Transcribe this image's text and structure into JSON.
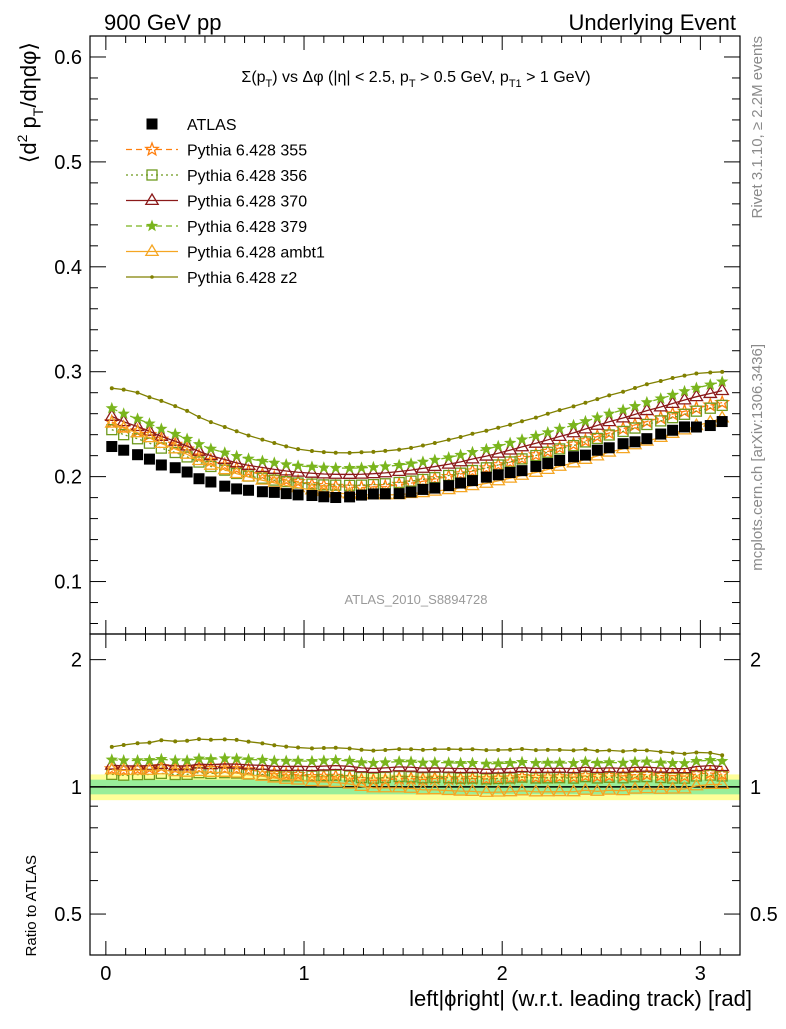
{
  "header": {
    "left": "900 GeV pp",
    "right": "Underlying Event"
  },
  "side": {
    "rivet": "Rivet 3.1.10, ≥ 2.2M events",
    "mcplots": "mcplots.cern.ch [arXiv:1306.3436]"
  },
  "analysis_tag": "ATLAS_2010_S8894728",
  "chart_data": [
    {
      "type": "line",
      "panel": "main",
      "title": "Σ(p_T) vs Δφ (|η| < 2.5, p_T > 0.5 GeV, p_T1 > 1 GeV)",
      "title_parts": {
        "a": "Σ(p",
        "a_sub": "T",
        "b": ") vs Δφ (|η| < 2.5, p",
        "b_sub": "T",
        "c": " > 0.5 GeV, p",
        "c_sub": "T1",
        "d": " > 1 GeV)"
      },
      "ylabel_parts": {
        "a": "⟨d",
        "sup": "2",
        "b": " p",
        "sub": "T",
        "c": "/dηdφ⟩"
      },
      "xlabel": "left|ϕright| (w.r.t. leading track) [rad]",
      "xlim": [
        -0.08,
        3.2
      ],
      "ylim": [
        0.05,
        0.62
      ],
      "x_ticks": [
        0,
        1,
        2,
        3
      ],
      "y_ticks": [
        0.1,
        0.2,
        0.3,
        0.4,
        0.5,
        0.6
      ],
      "y_tick_labels": [
        "0.1",
        "0.2",
        "0.3",
        "0.4",
        "0.5",
        "0.6"
      ],
      "legend_position": "top-left",
      "grid": false,
      "x": [
        0.03,
        0.09,
        0.16,
        0.22,
        0.28,
        0.35,
        0.41,
        0.47,
        0.53,
        0.6,
        0.66,
        0.72,
        0.79,
        0.85,
        0.91,
        0.97,
        1.04,
        1.1,
        1.16,
        1.23,
        1.29,
        1.35,
        1.41,
        1.48,
        1.54,
        1.6,
        1.66,
        1.73,
        1.79,
        1.85,
        1.92,
        1.98,
        2.04,
        2.1,
        2.17,
        2.23,
        2.29,
        2.36,
        2.42,
        2.48,
        2.54,
        2.61,
        2.67,
        2.73,
        2.8,
        2.86,
        2.92,
        2.98,
        3.05,
        3.11
      ],
      "series": [
        {
          "name": "ATLAS",
          "color": "#000000",
          "marker": "filled-square",
          "line": "none",
          "values": [
            0.2287,
            0.2252,
            0.2209,
            0.2167,
            0.2111,
            0.2085,
            0.2044,
            0.198,
            0.1949,
            0.1909,
            0.1883,
            0.187,
            0.1856,
            0.185,
            0.1838,
            0.1826,
            0.182,
            0.1808,
            0.1801,
            0.1807,
            0.1824,
            0.1835,
            0.1836,
            0.1838,
            0.1853,
            0.1878,
            0.1891,
            0.1914,
            0.1939,
            0.1962,
            0.1995,
            0.2017,
            0.2039,
            0.2057,
            0.2097,
            0.2125,
            0.2154,
            0.2189,
            0.2205,
            0.2252,
            0.2275,
            0.2314,
            0.2332,
            0.2362,
            0.2406,
            0.2442,
            0.2474,
            0.2473,
            0.2487,
            0.2525
          ]
        },
        {
          "name": "Pythia 6.428 355",
          "color": "#ff7f0e",
          "marker": "open-star",
          "line": "dashed",
          "values": [
            0.2521,
            0.2469,
            0.2435,
            0.2401,
            0.2355,
            0.2307,
            0.2262,
            0.2196,
            0.2153,
            0.2111,
            0.2078,
            0.205,
            0.2018,
            0.1989,
            0.1968,
            0.1951,
            0.1923,
            0.1913,
            0.1906,
            0.1899,
            0.1895,
            0.1903,
            0.1904,
            0.1925,
            0.1938,
            0.1956,
            0.1979,
            0.1999,
            0.2025,
            0.2053,
            0.2083,
            0.2112,
            0.2138,
            0.2173,
            0.2207,
            0.224,
            0.2274,
            0.2308,
            0.2341,
            0.2383,
            0.2416,
            0.2456,
            0.2493,
            0.2526,
            0.2559,
            0.2597,
            0.2623,
            0.2652,
            0.2682,
            0.2705
          ]
        },
        {
          "name": "Pythia 6.428 356",
          "color": "#6e9a1e",
          "marker": "open-square",
          "line": "dotted",
          "values": [
            0.2448,
            0.24,
            0.2361,
            0.2319,
            0.2272,
            0.223,
            0.2188,
            0.2139,
            0.2097,
            0.2062,
            0.203,
            0.2005,
            0.1985,
            0.1967,
            0.1952,
            0.1939,
            0.1929,
            0.1921,
            0.1919,
            0.1917,
            0.1919,
            0.1924,
            0.1932,
            0.1944,
            0.1957,
            0.1973,
            0.199,
            0.2011,
            0.2033,
            0.2058,
            0.2084,
            0.2111,
            0.214,
            0.2169,
            0.2201,
            0.2232,
            0.2264,
            0.2296,
            0.2331,
            0.2364,
            0.2397,
            0.2431,
            0.2463,
            0.2497,
            0.2531,
            0.2562,
            0.2594,
            0.2624,
            0.2652,
            0.2679
          ]
        },
        {
          "name": "Pythia 6.428 370",
          "color": "#8b1a1a",
          "marker": "open-triangle",
          "line": "solid",
          "values": [
            0.2574,
            0.2523,
            0.2477,
            0.2432,
            0.2383,
            0.2337,
            0.2291,
            0.2241,
            0.2199,
            0.2163,
            0.2131,
            0.2107,
            0.2087,
            0.2069,
            0.2054,
            0.2042,
            0.2032,
            0.2025,
            0.2022,
            0.2021,
            0.2023,
            0.2028,
            0.2036,
            0.2049,
            0.2062,
            0.2079,
            0.2096,
            0.2118,
            0.2141,
            0.2168,
            0.2195,
            0.2223,
            0.2253,
            0.2284,
            0.2318,
            0.235,
            0.2383,
            0.2417,
            0.2454,
            0.2489,
            0.2523,
            0.2559,
            0.2593,
            0.2629,
            0.2664,
            0.2697,
            0.2731,
            0.2762,
            0.2792,
            0.282
          ]
        },
        {
          "name": "Pythia 6.428 379",
          "color": "#7ab51d",
          "marker": "filled-star",
          "line": "dashed",
          "values": [
            0.2651,
            0.2599,
            0.2551,
            0.2505,
            0.2455,
            0.2406,
            0.2359,
            0.2308,
            0.2265,
            0.2228,
            0.2195,
            0.217,
            0.2149,
            0.2131,
            0.2116,
            0.2103,
            0.2093,
            0.2085,
            0.2082,
            0.2081,
            0.2083,
            0.2089,
            0.2097,
            0.211,
            0.2124,
            0.2141,
            0.2159,
            0.2182,
            0.2206,
            0.2233,
            0.2261,
            0.229,
            0.2321,
            0.2353,
            0.2387,
            0.2421,
            0.2455,
            0.249,
            0.2527,
            0.2563,
            0.2599,
            0.2636,
            0.2671,
            0.2708,
            0.2744,
            0.2778,
            0.2813,
            0.2845,
            0.2876,
            0.2905
          ]
        },
        {
          "name": "Pythia 6.428 ambt1",
          "color": "#f5a623",
          "marker": "open-triangle",
          "line": "solid",
          "values": [
            0.2509,
            0.2462,
            0.2418,
            0.2371,
            0.2316,
            0.2264,
            0.2213,
            0.2153,
            0.2108,
            0.2065,
            0.2029,
            0.1997,
            0.1966,
            0.1941,
            0.1915,
            0.1894,
            0.1873,
            0.1857,
            0.1844,
            0.1835,
            0.1828,
            0.1825,
            0.1826,
            0.1828,
            0.1838,
            0.1847,
            0.1861,
            0.1876,
            0.1894,
            0.1914,
            0.1936,
            0.196,
            0.1985,
            0.2012,
            0.204,
            0.2068,
            0.2098,
            0.2131,
            0.2164,
            0.2197,
            0.2233,
            0.2266,
            0.2303,
            0.2338,
            0.2373,
            0.2412,
            0.2445,
            0.2486,
            0.2519,
            0.2559
          ]
        },
        {
          "name": "Pythia 6.428 z2",
          "color": "#808000",
          "marker": "small-dot",
          "line": "solid",
          "values": [
            0.2843,
            0.2829,
            0.2801,
            0.2757,
            0.2722,
            0.2672,
            0.2627,
            0.2568,
            0.252,
            0.2473,
            0.2432,
            0.2392,
            0.2353,
            0.2321,
            0.2288,
            0.2262,
            0.2244,
            0.2234,
            0.2228,
            0.2227,
            0.2232,
            0.2236,
            0.2245,
            0.2258,
            0.2274,
            0.2297,
            0.2321,
            0.2352,
            0.2378,
            0.2409,
            0.2437,
            0.2466,
            0.2495,
            0.2528,
            0.2562,
            0.2599,
            0.2634,
            0.267,
            0.2704,
            0.2739,
            0.2775,
            0.2809,
            0.2845,
            0.2881,
            0.2912,
            0.294,
            0.2963,
            0.2983,
            0.2993,
            0.2999
          ]
        }
      ]
    },
    {
      "type": "line",
      "panel": "ratio",
      "ylabel": "Ratio to ATLAS",
      "xlim": [
        -0.08,
        3.2
      ],
      "ylim": [
        0.4,
        2.3
      ],
      "log_y": true,
      "x_ticks": [
        0,
        1,
        2,
        3
      ],
      "x_tick_labels": [
        "0",
        "1",
        "2",
        "3"
      ],
      "y_ticks": [
        0.5,
        1,
        2
      ],
      "y_tick_labels": [
        "0.5",
        "1",
        "2"
      ],
      "reference_line": 1,
      "band_1sigma": [
        0.96,
        1.04
      ],
      "band_2sigma": [
        0.93,
        1.07
      ],
      "x": [
        0.03,
        0.09,
        0.16,
        0.22,
        0.28,
        0.35,
        0.41,
        0.47,
        0.53,
        0.6,
        0.66,
        0.72,
        0.79,
        0.85,
        0.91,
        0.97,
        1.04,
        1.1,
        1.16,
        1.23,
        1.29,
        1.35,
        1.41,
        1.48,
        1.54,
        1.6,
        1.66,
        1.73,
        1.79,
        1.85,
        1.92,
        1.98,
        2.04,
        2.1,
        2.17,
        2.23,
        2.29,
        2.36,
        2.42,
        2.48,
        2.54,
        2.61,
        2.67,
        2.73,
        2.8,
        2.86,
        2.92,
        2.98,
        3.05,
        3.11
      ],
      "series": [
        {
          "name": "Pythia 6.428 355",
          "color": "#ff7f0e",
          "marker": "open-star",
          "line": "dashed",
          "values": [
            1.1023,
            1.0963,
            1.1023,
            1.108,
            1.1156,
            1.1066,
            1.1066,
            1.1091,
            1.1047,
            1.1058,
            1.1036,
            1.0963,
            1.0873,
            1.0751,
            1.0707,
            1.0685,
            1.0566,
            1.0581,
            1.0583,
            1.0509,
            1.039,
            1.037,
            1.037,
            1.0473,
            1.0459,
            1.0416,
            1.0466,
            1.0444,
            1.0444,
            1.0464,
            1.0441,
            1.0471,
            1.0486,
            1.0564,
            1.0524,
            1.0541,
            1.0557,
            1.0544,
            1.0616,
            1.0582,
            1.062,
            1.0614,
            1.069,
            1.0694,
            1.0636,
            1.0635,
            1.0602,
            1.0724,
            1.0784,
            1.0713
          ]
        },
        {
          "name": "Pythia 6.428 356",
          "color": "#6e9a1e",
          "marker": "open-square",
          "line": "dotted",
          "values": [
            1.0704,
            1.0657,
            1.0689,
            1.0701,
            1.0763,
            1.0695,
            1.0705,
            1.0803,
            1.076,
            1.0802,
            1.0781,
            1.0722,
            1.0695,
            1.0632,
            1.062,
            1.0619,
            1.0599,
            1.0625,
            1.0655,
            1.0609,
            1.0521,
            1.0485,
            1.0523,
            1.0577,
            1.0561,
            1.0506,
            1.0524,
            1.0507,
            1.0485,
            1.049,
            1.0446,
            1.0466,
            1.0495,
            1.0545,
            1.0496,
            1.0504,
            1.0511,
            1.0489,
            1.0571,
            1.0497,
            1.0536,
            1.0506,
            1.0562,
            1.0571,
            1.052,
            1.0491,
            1.0485,
            1.0611,
            1.0663,
            1.061
          ]
        },
        {
          "name": "Pythia 6.428 370",
          "color": "#8b1a1a",
          "marker": "open-triangle",
          "line": "solid",
          "values": [
            1.1255,
            1.1204,
            1.1213,
            1.1223,
            1.1288,
            1.1209,
            1.1208,
            1.1318,
            1.1283,
            1.1331,
            1.1317,
            1.1267,
            1.1245,
            1.1184,
            1.1175,
            1.1183,
            1.1165,
            1.12,
            1.1227,
            1.1184,
            1.109,
            1.1052,
            1.109,
            1.1148,
            1.1129,
            1.1069,
            1.1084,
            1.1066,
            1.1042,
            1.105,
            1.1003,
            1.1021,
            1.105,
            1.1103,
            1.1054,
            1.106,
            1.1063,
            1.1042,
            1.1129,
            1.1054,
            1.109,
            1.1059,
            1.1119,
            1.113,
            1.1072,
            1.1044,
            1.1039,
            1.1168,
            1.1226,
            1.1168
          ]
        },
        {
          "name": "Pythia 6.428 379",
          "color": "#7ab51d",
          "marker": "filled-star",
          "line": "dashed",
          "values": [
            1.1592,
            1.1541,
            1.1548,
            1.156,
            1.1629,
            1.154,
            1.1541,
            1.1657,
            1.1621,
            1.1671,
            1.1657,
            1.1604,
            1.1578,
            1.1519,
            1.1512,
            1.1517,
            1.1501,
            1.1532,
            1.156,
            1.1516,
            1.142,
            1.1384,
            1.1422,
            1.148,
            1.1462,
            1.14,
            1.1417,
            1.14,
            1.1377,
            1.1381,
            1.1333,
            1.1354,
            1.1383,
            1.1439,
            1.1383,
            1.1393,
            1.1398,
            1.1375,
            1.146,
            1.1389,
            1.1425,
            1.1392,
            1.1454,
            1.1465,
            1.1405,
            1.1376,
            1.137,
            1.1504,
            1.1564,
            1.1505
          ]
        },
        {
          "name": "Pythia 6.428 ambt1",
          "color": "#f5a623",
          "marker": "open-triangle",
          "line": "solid",
          "values": [
            1.0971,
            1.0933,
            1.0946,
            1.0942,
            1.0971,
            1.0859,
            1.0827,
            1.0874,
            1.0816,
            1.0817,
            1.0776,
            1.0679,
            1.0593,
            1.0492,
            1.0419,
            1.0373,
            1.0291,
            1.0271,
            1.0239,
            1.0155,
            1.0022,
            0.9946,
            0.9946,
            0.9946,
            0.9919,
            0.9835,
            0.9841,
            0.9801,
            0.9768,
            0.9755,
            0.9704,
            0.9717,
            0.9735,
            0.9781,
            0.9728,
            0.9732,
            0.974,
            0.9735,
            0.9814,
            0.9756,
            0.9816,
            0.9792,
            0.9876,
            0.9898,
            0.9863,
            0.9877,
            0.9883,
            1.0053,
            1.0129,
            1.0135
          ]
        },
        {
          "name": "Pythia 6.428 z2",
          "color": "#808000",
          "marker": "small-dot",
          "line": "solid",
          "values": [
            1.2431,
            1.2563,
            1.2681,
            1.2722,
            1.2894,
            1.2815,
            1.2852,
            1.2969,
            1.2929,
            1.2954,
            1.2916,
            1.2791,
            1.2677,
            1.2546,
            1.2448,
            1.2388,
            1.233,
            1.2356,
            1.2372,
            1.2324,
            1.2237,
            1.2186,
            1.2227,
            1.2285,
            1.2272,
            1.2231,
            1.2274,
            1.2288,
            1.2265,
            1.2278,
            1.2215,
            1.2226,
            1.2237,
            1.229,
            1.2217,
            1.2231,
            1.2228,
            1.2198,
            1.2263,
            1.2163,
            1.2198,
            1.2139,
            1.22,
            1.2197,
            1.2103,
            1.204,
            1.1977,
            1.2062,
            1.2034,
            1.1877
          ]
        }
      ]
    }
  ]
}
